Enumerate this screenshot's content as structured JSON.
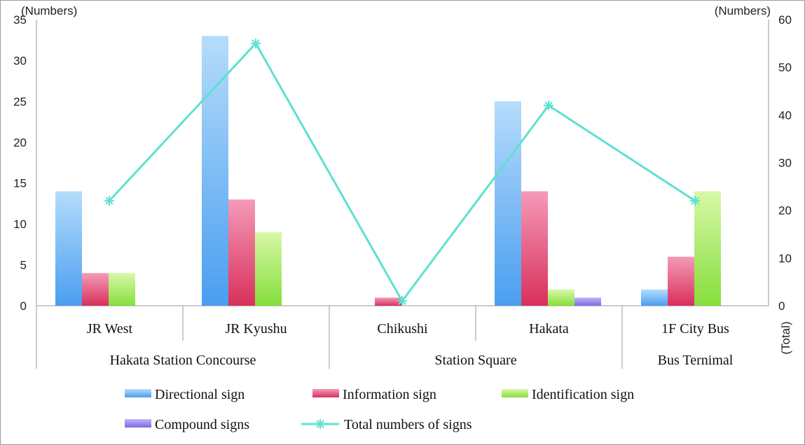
{
  "chart_data": {
    "type": "bar",
    "left_axis_unit": "(Numbers)",
    "right_axis_unit": "(Numbers)",
    "right_axis_label": "(Total)",
    "left_ylim": [
      0,
      35
    ],
    "left_ticks": [
      "0",
      "5",
      "10",
      "15",
      "20",
      "25",
      "30",
      "35"
    ],
    "right_ylim": [
      0,
      60
    ],
    "right_ticks": [
      "0",
      "10",
      "20",
      "30",
      "40",
      "50",
      "60"
    ],
    "categories": [
      "JR West",
      "JR Kyushu",
      "Chikushi",
      "Hakata",
      "1F City Bus"
    ],
    "groups": [
      {
        "label": "Hakata Station Concourse",
        "span": 2
      },
      {
        "label": "Station Square",
        "span": 2
      },
      {
        "label": "Bus Ternimal",
        "span": 1
      }
    ],
    "series": [
      {
        "name": "Directional sign",
        "axis": "left",
        "color": "#5aa8f0",
        "values": [
          14,
          33,
          0,
          25,
          2
        ]
      },
      {
        "name": "Information sign",
        "axis": "left",
        "color": "#e0406a",
        "values": [
          4,
          13,
          1,
          14,
          6
        ]
      },
      {
        "name": "Identification sign",
        "axis": "left",
        "color": "#8fe04a",
        "values": [
          4,
          9,
          0,
          2,
          14
        ]
      },
      {
        "name": "Compound signs",
        "axis": "left",
        "color": "#8f7fe8",
        "values": [
          0,
          0,
          0,
          1,
          0
        ]
      }
    ],
    "line": {
      "name": "Total numbers of signs",
      "axis": "right",
      "color": "#5fe0d0",
      "values": [
        22,
        55,
        1,
        42,
        22
      ]
    },
    "grid": false,
    "legend_placement": "bottom"
  }
}
